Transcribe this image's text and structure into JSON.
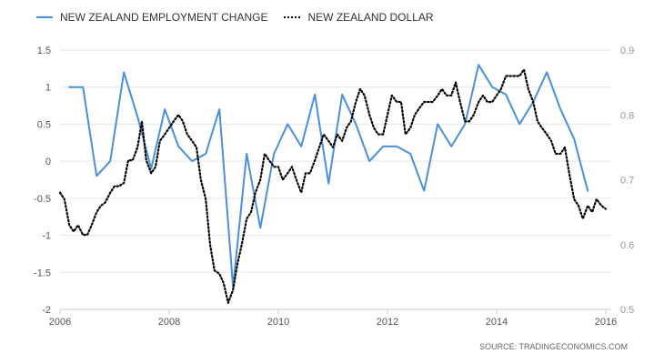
{
  "colors": {
    "employment": "#4a90d9",
    "dollar": "#000000",
    "grid": "#e6e6e6",
    "axis_text": "#555555"
  },
  "legend": {
    "employment_label": "NEW ZEALAND EMPLOYMENT CHANGE",
    "dollar_label": "NEW ZEALAND DOLLAR"
  },
  "source": "SOURCE: TRADINGECONOMICS.COM",
  "chart_data": {
    "type": "line",
    "x_ticks": [
      "2006",
      "2008",
      "2010",
      "2012",
      "2014",
      "2016"
    ],
    "xlim": [
      2006,
      2016.1
    ],
    "y_left": {
      "ticks": [
        "1.5",
        "1",
        "0.5",
        "0",
        "-0.5",
        "-1",
        "-1.5",
        "-2"
      ],
      "lim": [
        -2,
        1.5
      ]
    },
    "y_right": {
      "ticks": [
        "0.9",
        "0.8",
        "0.7",
        "0.6",
        "0.5"
      ],
      "lim": [
        0.5,
        0.9
      ]
    },
    "grid": true,
    "legend_position": "top-left",
    "series": [
      {
        "name": "NEW ZEALAND EMPLOYMENT CHANGE",
        "axis": "left",
        "style": "solid",
        "points": [
          [
            2006.17,
            1.0
          ],
          [
            2006.42,
            1.0
          ],
          [
            2006.67,
            -0.2
          ],
          [
            2006.92,
            0.0
          ],
          [
            2007.17,
            1.2
          ],
          [
            2007.42,
            0.6
          ],
          [
            2007.67,
            -0.1
          ],
          [
            2007.92,
            0.7
          ],
          [
            2008.17,
            0.2
          ],
          [
            2008.42,
            0.0
          ],
          [
            2008.67,
            0.1
          ],
          [
            2008.92,
            0.7
          ],
          [
            2009.17,
            -1.7
          ],
          [
            2009.42,
            0.1
          ],
          [
            2009.67,
            -0.9
          ],
          [
            2009.92,
            0.1
          ],
          [
            2010.17,
            0.5
          ],
          [
            2010.42,
            0.2
          ],
          [
            2010.67,
            0.9
          ],
          [
            2010.92,
            -0.3
          ],
          [
            2011.17,
            0.9
          ],
          [
            2011.42,
            0.5
          ],
          [
            2011.67,
            0.0
          ],
          [
            2011.92,
            0.2
          ],
          [
            2012.17,
            0.2
          ],
          [
            2012.42,
            0.1
          ],
          [
            2012.67,
            -0.4
          ],
          [
            2012.92,
            0.5
          ],
          [
            2013.17,
            0.2
          ],
          [
            2013.42,
            0.5
          ],
          [
            2013.67,
            1.3
          ],
          [
            2013.92,
            1.0
          ],
          [
            2014.17,
            0.9
          ],
          [
            2014.42,
            0.5
          ],
          [
            2014.67,
            0.8
          ],
          [
            2014.92,
            1.2
          ],
          [
            2015.17,
            0.7
          ],
          [
            2015.42,
            0.3
          ],
          [
            2015.67,
            -0.4
          ]
        ]
      },
      {
        "name": "NEW ZEALAND DOLLAR",
        "axis": "right",
        "style": "dotted",
        "points": [
          [
            2006.0,
            0.68
          ],
          [
            2006.08,
            0.67
          ],
          [
            2006.17,
            0.63
          ],
          [
            2006.25,
            0.62
          ],
          [
            2006.33,
            0.63
          ],
          [
            2006.42,
            0.615
          ],
          [
            2006.5,
            0.615
          ],
          [
            2006.58,
            0.63
          ],
          [
            2006.67,
            0.65
          ],
          [
            2006.75,
            0.66
          ],
          [
            2006.83,
            0.665
          ],
          [
            2006.92,
            0.68
          ],
          [
            2007.0,
            0.69
          ],
          [
            2007.08,
            0.69
          ],
          [
            2007.17,
            0.695
          ],
          [
            2007.25,
            0.73
          ],
          [
            2007.33,
            0.73
          ],
          [
            2007.42,
            0.75
          ],
          [
            2007.5,
            0.79
          ],
          [
            2007.58,
            0.73
          ],
          [
            2007.67,
            0.71
          ],
          [
            2007.75,
            0.72
          ],
          [
            2007.83,
            0.76
          ],
          [
            2007.92,
            0.77
          ],
          [
            2008.0,
            0.78
          ],
          [
            2008.08,
            0.79
          ],
          [
            2008.17,
            0.8
          ],
          [
            2008.25,
            0.79
          ],
          [
            2008.33,
            0.77
          ],
          [
            2008.42,
            0.76
          ],
          [
            2008.5,
            0.75
          ],
          [
            2008.58,
            0.7
          ],
          [
            2008.67,
            0.67
          ],
          [
            2008.75,
            0.6
          ],
          [
            2008.83,
            0.56
          ],
          [
            2008.92,
            0.555
          ],
          [
            2009.0,
            0.54
          ],
          [
            2009.08,
            0.51
          ],
          [
            2009.17,
            0.53
          ],
          [
            2009.25,
            0.57
          ],
          [
            2009.33,
            0.6
          ],
          [
            2009.42,
            0.64
          ],
          [
            2009.5,
            0.65
          ],
          [
            2009.58,
            0.68
          ],
          [
            2009.67,
            0.7
          ],
          [
            2009.75,
            0.74
          ],
          [
            2009.83,
            0.73
          ],
          [
            2009.92,
            0.72
          ],
          [
            2010.0,
            0.72
          ],
          [
            2010.08,
            0.7
          ],
          [
            2010.17,
            0.71
          ],
          [
            2010.25,
            0.72
          ],
          [
            2010.33,
            0.7
          ],
          [
            2010.42,
            0.68
          ],
          [
            2010.5,
            0.71
          ],
          [
            2010.58,
            0.71
          ],
          [
            2010.67,
            0.73
          ],
          [
            2010.75,
            0.75
          ],
          [
            2010.83,
            0.77
          ],
          [
            2010.92,
            0.76
          ],
          [
            2011.0,
            0.75
          ],
          [
            2011.08,
            0.77
          ],
          [
            2011.17,
            0.76
          ],
          [
            2011.25,
            0.78
          ],
          [
            2011.33,
            0.79
          ],
          [
            2011.42,
            0.82
          ],
          [
            2011.5,
            0.84
          ],
          [
            2011.58,
            0.83
          ],
          [
            2011.67,
            0.8
          ],
          [
            2011.75,
            0.78
          ],
          [
            2011.83,
            0.77
          ],
          [
            2011.92,
            0.77
          ],
          [
            2012.0,
            0.8
          ],
          [
            2012.08,
            0.83
          ],
          [
            2012.17,
            0.82
          ],
          [
            2012.25,
            0.82
          ],
          [
            2012.33,
            0.77
          ],
          [
            2012.42,
            0.78
          ],
          [
            2012.5,
            0.8
          ],
          [
            2012.58,
            0.81
          ],
          [
            2012.67,
            0.82
          ],
          [
            2012.75,
            0.82
          ],
          [
            2012.83,
            0.82
          ],
          [
            2012.92,
            0.83
          ],
          [
            2013.0,
            0.84
          ],
          [
            2013.08,
            0.83
          ],
          [
            2013.17,
            0.83
          ],
          [
            2013.25,
            0.85
          ],
          [
            2013.33,
            0.82
          ],
          [
            2013.42,
            0.79
          ],
          [
            2013.5,
            0.79
          ],
          [
            2013.58,
            0.8
          ],
          [
            2013.67,
            0.82
          ],
          [
            2013.75,
            0.83
          ],
          [
            2013.83,
            0.82
          ],
          [
            2013.92,
            0.82
          ],
          [
            2014.0,
            0.83
          ],
          [
            2014.08,
            0.84
          ],
          [
            2014.17,
            0.86
          ],
          [
            2014.25,
            0.86
          ],
          [
            2014.33,
            0.86
          ],
          [
            2014.42,
            0.86
          ],
          [
            2014.5,
            0.87
          ],
          [
            2014.58,
            0.84
          ],
          [
            2014.67,
            0.82
          ],
          [
            2014.75,
            0.79
          ],
          [
            2014.83,
            0.78
          ],
          [
            2014.92,
            0.77
          ],
          [
            2015.0,
            0.76
          ],
          [
            2015.08,
            0.74
          ],
          [
            2015.17,
            0.74
          ],
          [
            2015.25,
            0.75
          ],
          [
            2015.33,
            0.71
          ],
          [
            2015.42,
            0.67
          ],
          [
            2015.5,
            0.66
          ],
          [
            2015.58,
            0.64
          ],
          [
            2015.67,
            0.66
          ],
          [
            2015.75,
            0.65
          ],
          [
            2015.83,
            0.67
          ],
          [
            2015.92,
            0.66
          ],
          [
            2016.0,
            0.655
          ]
        ]
      }
    ]
  }
}
